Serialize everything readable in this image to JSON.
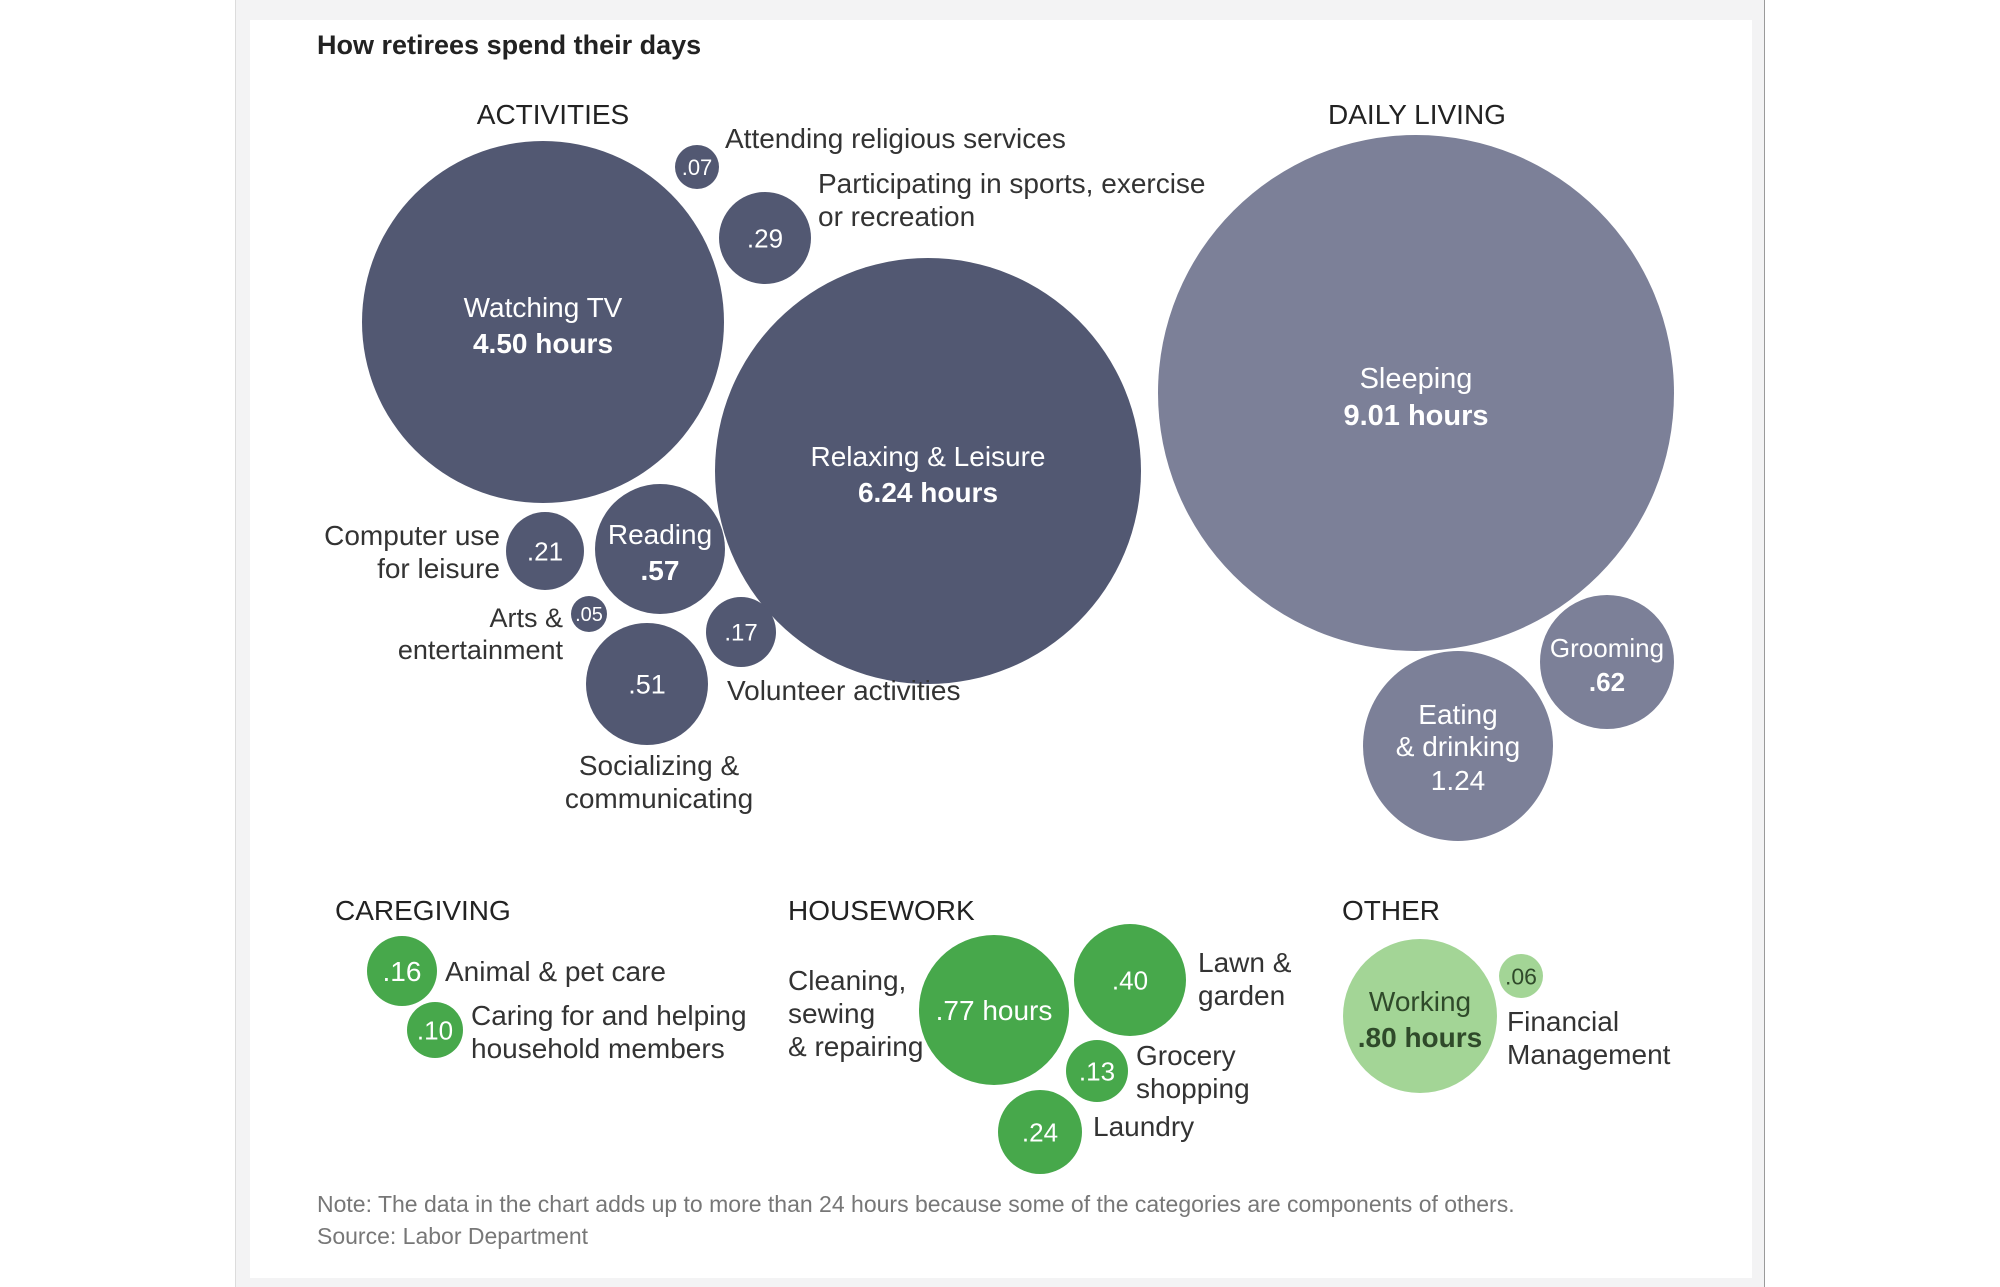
{
  "chart_data": {
    "type": "bubble",
    "title": "How retirees spend their days",
    "unit": "hours",
    "note": "Note: The data in the chart adds up to more than 24 hours because some of the categories are components of others.",
    "source": "Source: Labor Department",
    "colors": {
      "activities": "#525872",
      "daily_living": "#7c8098",
      "green": "#47a84b",
      "light_green": "#a3d596"
    },
    "groups": [
      {
        "name": "ACTIVITIES",
        "color": "activities",
        "items": [
          {
            "label": "Watching TV",
            "value_text": "4.50 hours",
            "value": 4.5
          },
          {
            "label": "Relaxing & Leisure",
            "value_text": "6.24 hours",
            "value": 6.24
          },
          {
            "label": "Attending religious services",
            "value_text": ".07",
            "value": 0.07
          },
          {
            "label": "Participating in sports, exercise or recreation",
            "value_text": ".29",
            "value": 0.29
          },
          {
            "label": "Computer use for leisure",
            "value_text": ".21",
            "value": 0.21
          },
          {
            "label": "Reading",
            "value_text": ".57",
            "value": 0.57
          },
          {
            "label": "Arts & entertainment",
            "value_text": ".05",
            "value": 0.05
          },
          {
            "label": "Volunteer activities",
            "value_text": ".17",
            "value": 0.17
          },
          {
            "label": "Socializing & communicating",
            "value_text": ".51",
            "value": 0.51
          }
        ]
      },
      {
        "name": "DAILY LIVING",
        "color": "daily_living",
        "items": [
          {
            "label": "Sleeping",
            "value_text": "9.01 hours",
            "value": 9.01
          },
          {
            "label": "Grooming",
            "value_text": ".62",
            "value": 0.62
          },
          {
            "label": "Eating & drinking",
            "value_text": "1.24",
            "value": 1.24
          }
        ]
      },
      {
        "name": "CAREGIVING",
        "color": "green",
        "items": [
          {
            "label": "Animal & pet care",
            "value_text": ".16",
            "value": 0.16
          },
          {
            "label": "Caring for and helping household members",
            "value_text": ".10",
            "value": 0.1
          }
        ]
      },
      {
        "name": "HOUSEWORK",
        "color": "green",
        "items": [
          {
            "label": "Cleaning, sewing & repairing",
            "value_text": ".77 hours",
            "value": 0.77
          },
          {
            "label": "Lawn & garden",
            "value_text": ".40",
            "value": 0.4
          },
          {
            "label": "Grocery shopping",
            "value_text": ".13",
            "value": 0.13
          },
          {
            "label": "Laundry",
            "value_text": ".24",
            "value": 0.24
          }
        ]
      },
      {
        "name": "OTHER",
        "color": "light_green",
        "items": [
          {
            "label": "Working",
            "value_text": ".80 hours",
            "value": 0.8
          },
          {
            "label": "Financial Management",
            "value_text": ".06",
            "value": 0.06
          }
        ]
      }
    ]
  }
}
